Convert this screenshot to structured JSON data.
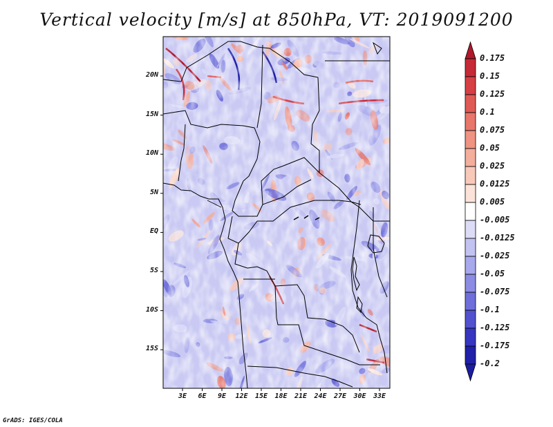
{
  "title": "Vertical velocity [m/s] at 850hPa, VT: 2019091200",
  "map": {
    "region": "Central Africa",
    "lat_labels": [
      "20N",
      "15N",
      "10N",
      "5N",
      "EQ",
      "5S",
      "10S",
      "15S"
    ],
    "lon_labels": [
      "3E",
      "6E",
      "9E",
      "12E",
      "15E",
      "18E",
      "21E",
      "24E",
      "27E",
      "30E",
      "33E"
    ]
  },
  "colorbar": {
    "labels": [
      "0.175",
      "0.15",
      "0.125",
      "0.1",
      "0.075",
      "0.05",
      "0.025",
      "0.0125",
      "0.005",
      "-0.005",
      "-0.0125",
      "-0.025",
      "-0.05",
      "-0.075",
      "-0.1",
      "-0.125",
      "-0.175",
      "-0.2"
    ],
    "colors": [
      "#b2182b",
      "#c62a37",
      "#d63f44",
      "#e05a55",
      "#e8766a",
      "#ef9382",
      "#f4ae9c",
      "#f8c9b9",
      "#fbe3d9",
      "#ffffff",
      "#dcdcf7",
      "#c3c3f2",
      "#a8a8ec",
      "#8c8ce4",
      "#6f6fdb",
      "#5252cf",
      "#3636c0",
      "#2020a8",
      "#1c1ca0"
    ]
  },
  "footer": "GrADS: IGES/COLA"
}
